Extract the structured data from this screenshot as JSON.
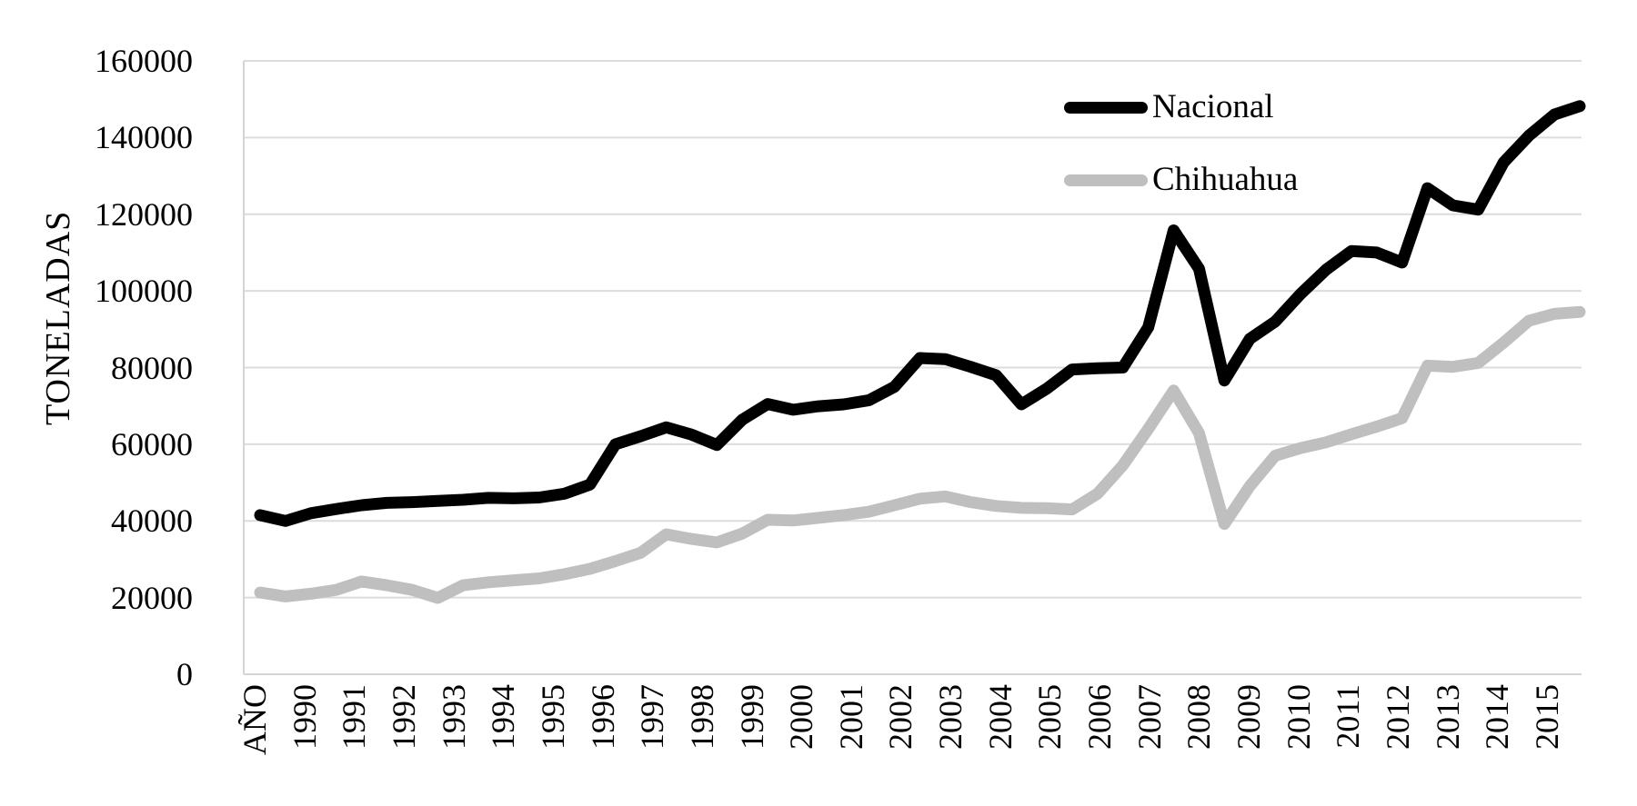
{
  "colors": {
    "background": "#FFFFFF",
    "gridline": "#DCDCDC",
    "axis_line": "#D4D4D4",
    "nacional_line": "#000000",
    "chihuahua_line": "#BFBFBF"
  },
  "chart_data": {
    "type": "line",
    "title": "",
    "xlabel": "",
    "ylabel": "TONELADAS",
    "ylim": [
      0,
      160000
    ],
    "ytick_step": 20000,
    "y_ticks": [
      "160000",
      "140000",
      "120000",
      "100000",
      "80000",
      "60000",
      "40000",
      "20000",
      "0"
    ],
    "categories": [
      "AÑO",
      "1990",
      "1991",
      "1992",
      "1993",
      "1994",
      "1995",
      "1996",
      "1997",
      "1998",
      "1999",
      "2000",
      "2001",
      "2002",
      "2003",
      "2004",
      "2005",
      "2006",
      "2007",
      "2008",
      "2009",
      "2010",
      "2011",
      "2012",
      "2013",
      "2014",
      "2015"
    ],
    "points_per_category": 2,
    "note": "53 semiannual points per series; year labels fall under every second point",
    "grid": "horizontal",
    "legend_position": "top-right-inside",
    "series": [
      {
        "name": "Nacional",
        "color": "#000000",
        "values": [
          41500,
          40000,
          42000,
          43100,
          44100,
          44700,
          44900,
          45200,
          45500,
          46000,
          45900,
          46100,
          47100,
          49500,
          60000,
          62100,
          64400,
          62500,
          59800,
          66400,
          70500,
          69000,
          69900,
          70400,
          71500,
          75000,
          82500,
          82200,
          80200,
          78000,
          70400,
          74500,
          79500,
          79800,
          80000,
          90500,
          115800,
          105800,
          76600,
          87500,
          92000,
          99200,
          105500,
          110400,
          110000,
          107400,
          126800,
          122300,
          121200,
          133500,
          140500,
          146000,
          148200
        ]
      },
      {
        "name": "Chihuahua",
        "color": "#BFBFBF",
        "values": [
          21300,
          20300,
          21000,
          22000,
          24200,
          23200,
          22000,
          19900,
          23200,
          24000,
          24500,
          25000,
          26100,
          27500,
          29500,
          31700,
          36500,
          35300,
          34400,
          36700,
          40300,
          40100,
          40800,
          41500,
          42400,
          44100,
          45800,
          46400,
          44900,
          43900,
          43400,
          43300,
          43000,
          47100,
          54500,
          64000,
          74000,
          62900,
          39200,
          49100,
          57000,
          59000,
          60500,
          62600,
          64600,
          66800,
          80500,
          80200,
          81200,
          86500,
          92200,
          94000,
          94500
        ]
      }
    ]
  }
}
